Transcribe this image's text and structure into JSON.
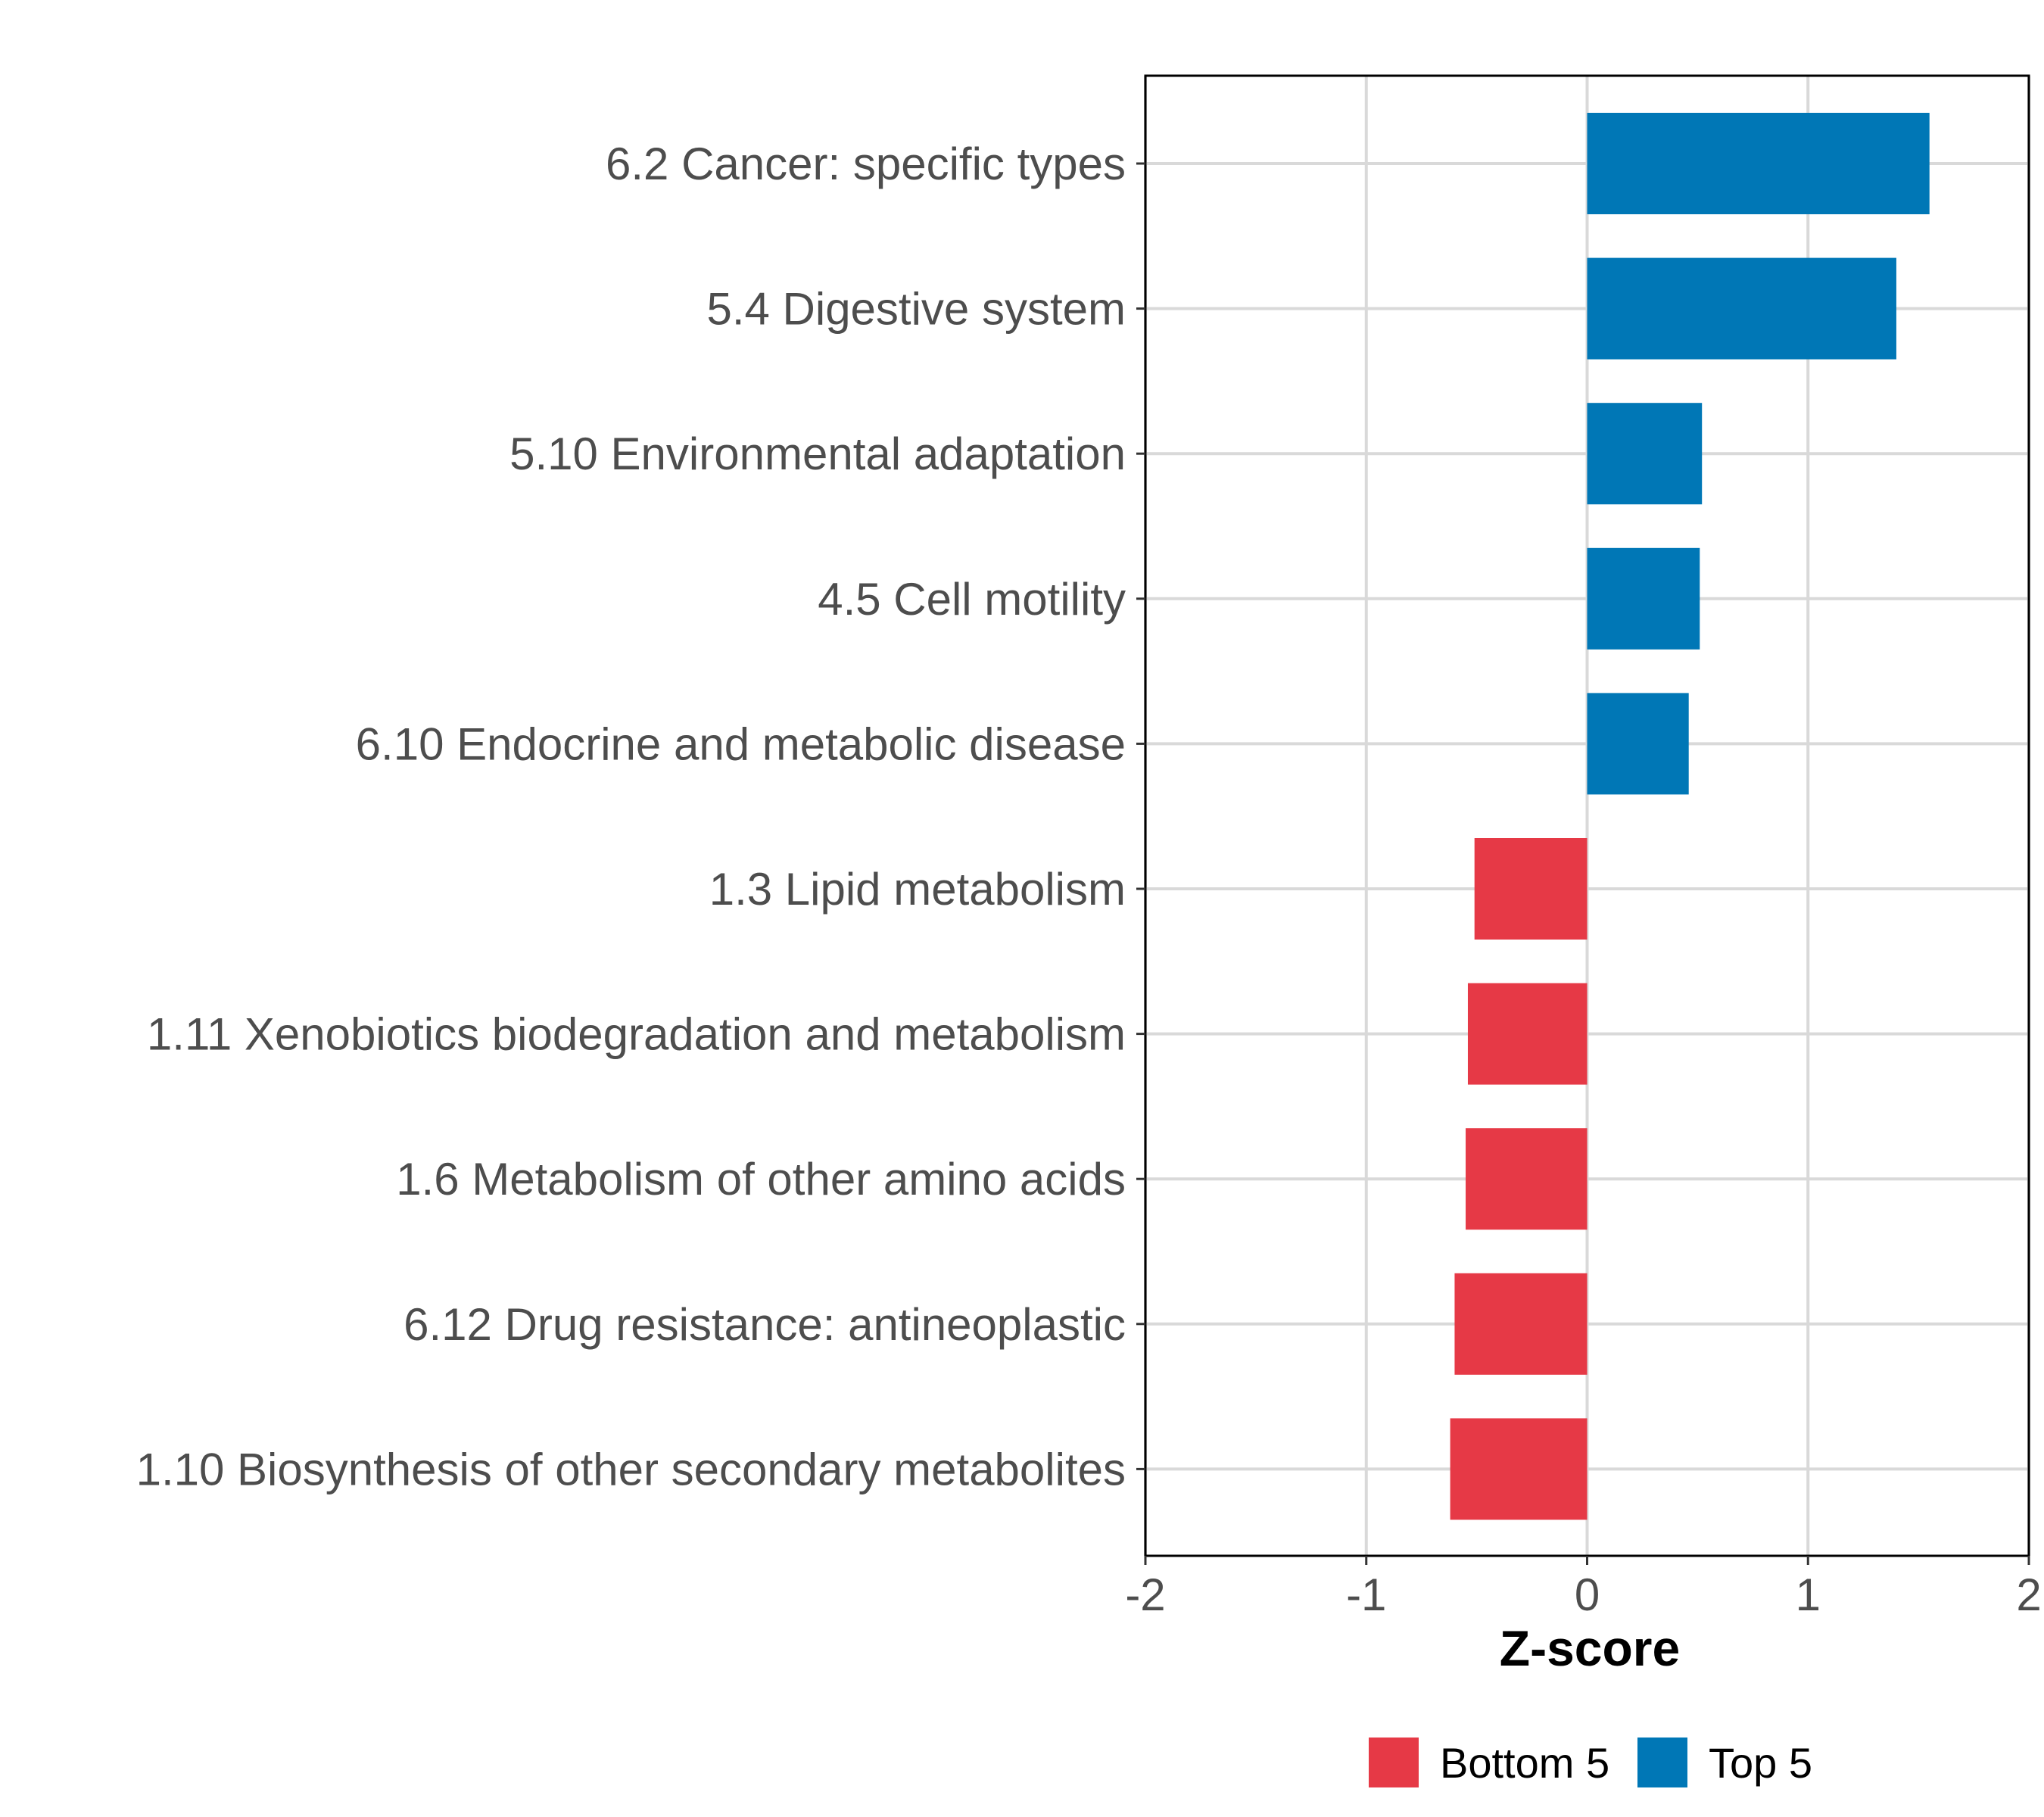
{
  "chart_data": {
    "type": "bar",
    "orientation": "horizontal",
    "title": "",
    "xlabel": "Z-score",
    "ylabel": "",
    "xlim": [
      -2,
      2
    ],
    "xticks": [
      -2,
      -1,
      0,
      1,
      2
    ],
    "xtick_labels": [
      "-2",
      "-1",
      "0",
      "1",
      "2"
    ],
    "grid": true,
    "legend_position": "bottom",
    "categories": [
      "6.2 Cancer: specific types",
      "5.4 Digestive system",
      "5.10 Environmental adaptation",
      "4.5 Cell motility",
      "6.10 Endocrine and metabolic disease",
      "1.3 Lipid metabolism",
      "1.11 Xenobiotics biodegradation and metabolism",
      "1.6 Metabolism of other amino acids",
      "6.12 Drug resistance: antineoplastic",
      "1.10 Biosynthesis of other secondary metabolites"
    ],
    "values": [
      1.55,
      1.4,
      0.52,
      0.51,
      0.46,
      -0.51,
      -0.54,
      -0.55,
      -0.6,
      -0.62
    ],
    "groups": [
      "Top 5",
      "Top 5",
      "Top 5",
      "Top 5",
      "Top 5",
      "Bottom 5",
      "Bottom 5",
      "Bottom 5",
      "Bottom 5",
      "Bottom 5"
    ],
    "series": [
      {
        "name": "Bottom 5",
        "color": "#e63946"
      },
      {
        "name": "Top 5",
        "color": "#0077b6"
      }
    ]
  }
}
